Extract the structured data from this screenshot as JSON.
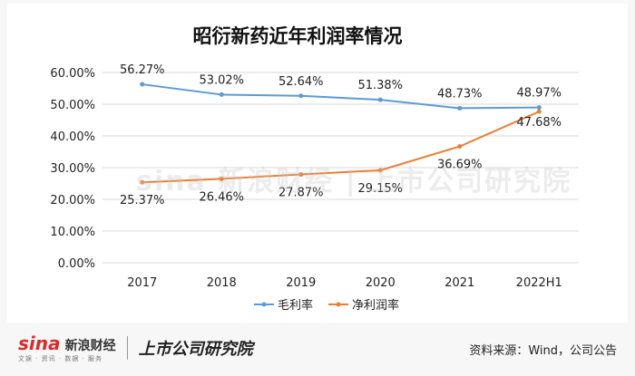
{
  "title": "昭衍新药近年利润率情况",
  "chart_data": {
    "type": "line",
    "title": "昭衍新药近年利润率情况",
    "categories": [
      "2017",
      "2018",
      "2019",
      "2020",
      "2021",
      "2022H1"
    ],
    "y_ticks": [
      "60.00%",
      "50.00%",
      "40.00%",
      "30.00%",
      "20.00%",
      "10.00%",
      "0.00%"
    ],
    "ylim": [
      0,
      60
    ],
    "grid": true,
    "legend_position": "bottom",
    "series": [
      {
        "name": "毛利率",
        "values": [
          56.27,
          53.02,
          52.64,
          51.38,
          48.73,
          48.97
        ],
        "labels": [
          "56.27%",
          "53.02%",
          "52.64%",
          "51.38%",
          "48.73%",
          "48.97%"
        ],
        "color": "#5b9bd5"
      },
      {
        "name": "净利润率",
        "values": [
          25.37,
          26.46,
          27.87,
          29.15,
          36.69,
          47.68
        ],
        "labels": [
          "25.37%",
          "26.46%",
          "27.87%",
          "29.15%",
          "36.69%",
          "47.68%"
        ],
        "color": "#ed7d31"
      }
    ]
  },
  "footer": {
    "sina_mark": "sina",
    "sina_name": "新浪财经",
    "sina_sub": "文娱 · 资讯 · 数据 · 服务",
    "shang_logo": "上市公司研究院",
    "source": "资料来源：Wind，公司公告"
  },
  "watermark": "sina 新浪财经 | 上市公司研究院"
}
